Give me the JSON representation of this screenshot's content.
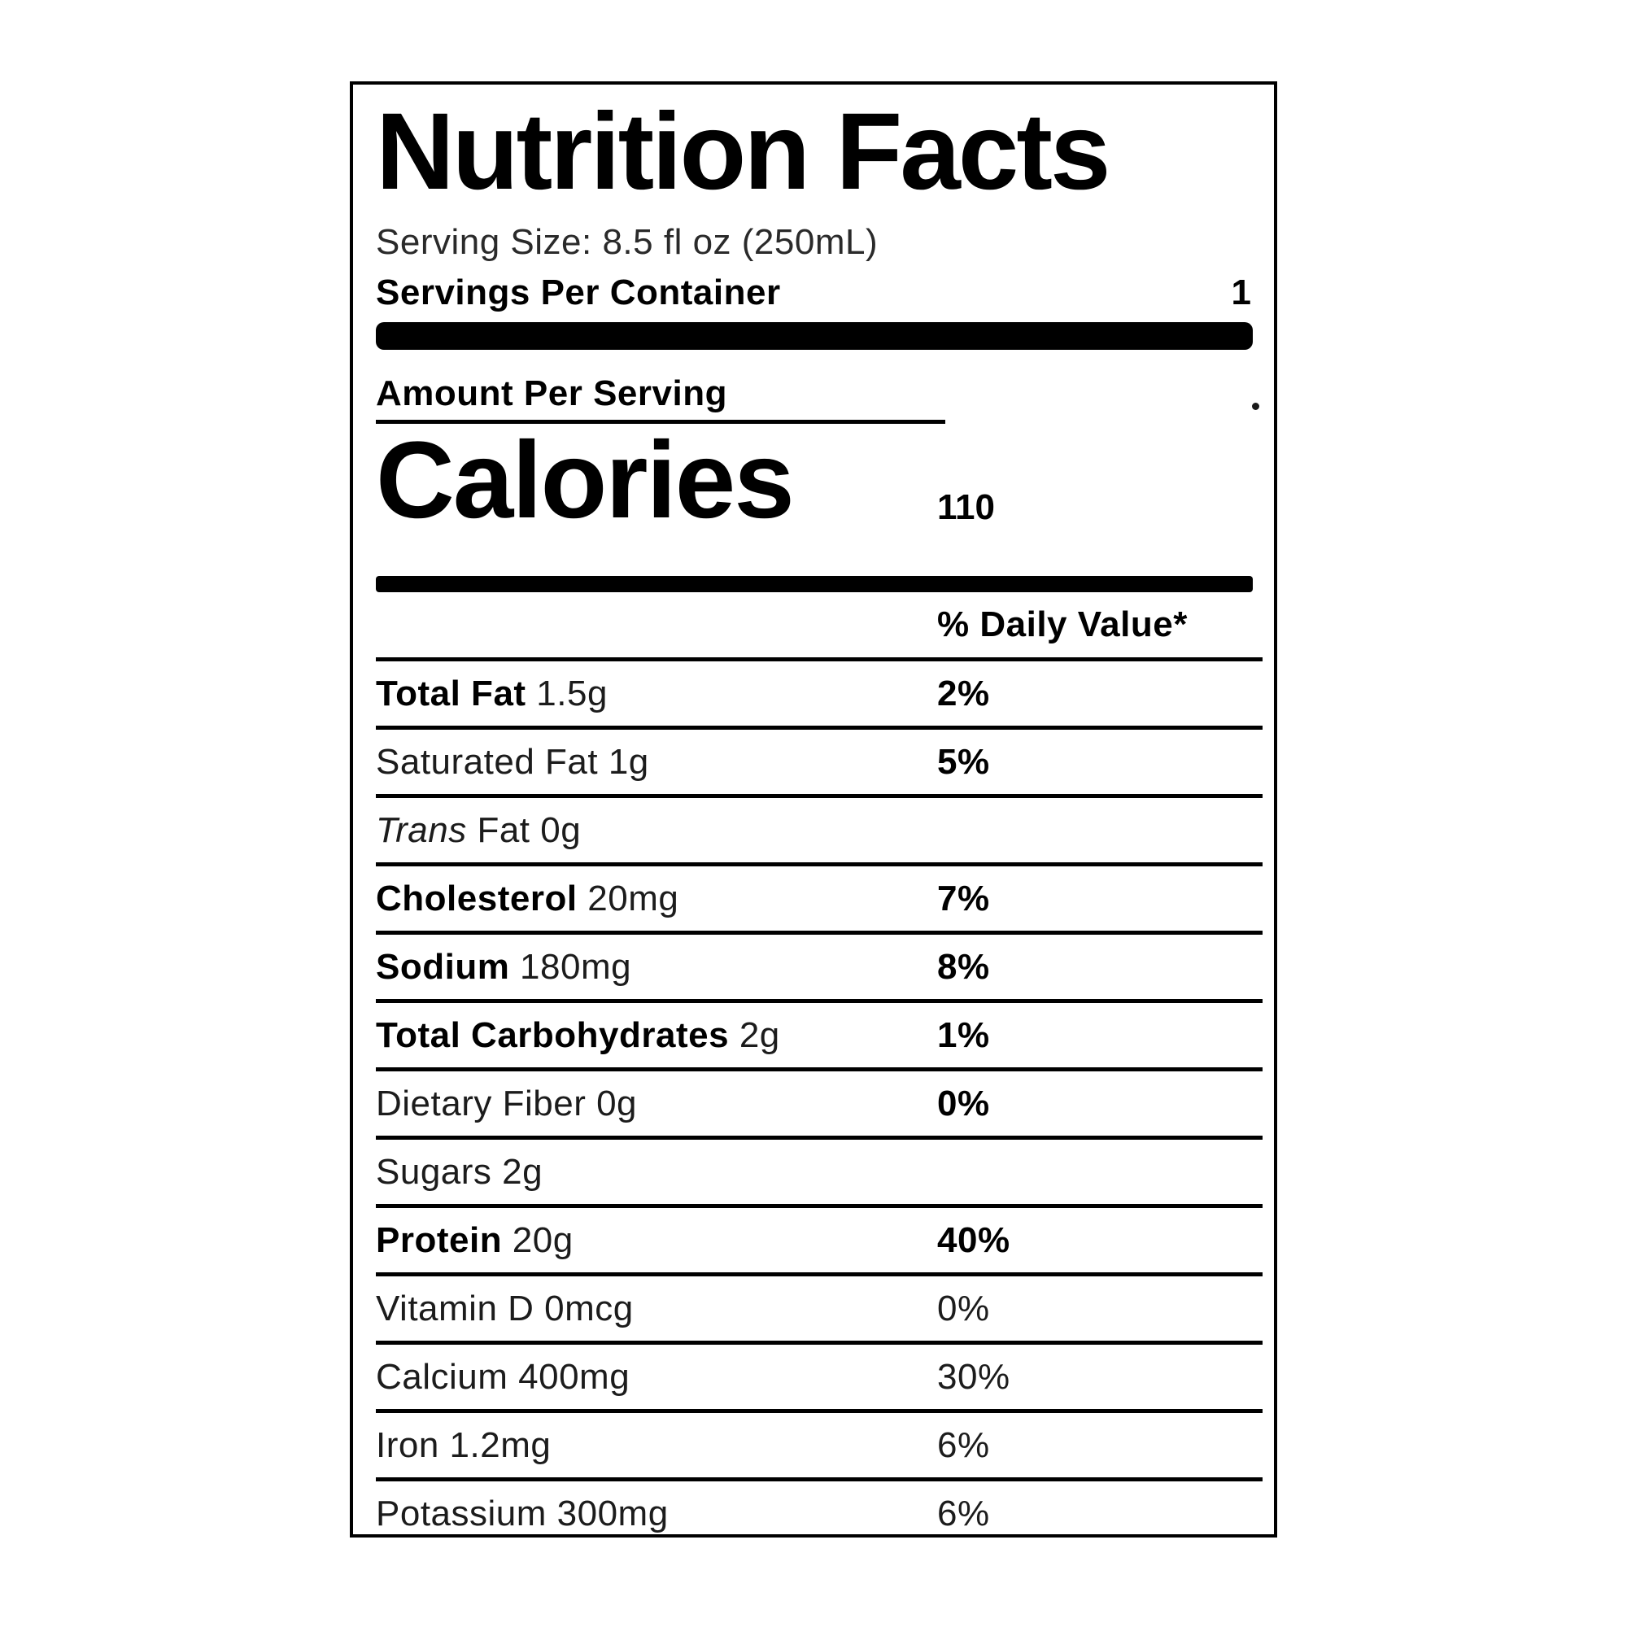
{
  "label": {
    "title": "Nutrition Facts",
    "serving_size": "Serving Size: 8.5 fl oz (250mL)",
    "servings_per_container": {
      "label": "Servings Per Container",
      "value": "1"
    },
    "amount_per_serving": "Amount Per Serving",
    "calories": {
      "label": "Calories",
      "value": "110"
    },
    "daily_value_header": "% Daily Value*"
  },
  "rows": [
    {
      "bold": "Total Fat",
      "normal": " 1.5g",
      "value": "2%"
    },
    {
      "normal": "Saturated Fat 1g",
      "value": "5%"
    },
    {
      "italic": "Trans",
      "normal": " Fat 0g",
      "value": ""
    },
    {
      "bold": "Cholesterol",
      "normal": " 20mg",
      "value": "7%"
    },
    {
      "bold": "Sodium",
      "normal": " 180mg",
      "value": "8%"
    },
    {
      "bold": "Total Carbohydrates",
      "normal": " 2g",
      "value": "1%"
    },
    {
      "normal": "Dietary Fiber 0g",
      "value": "0%"
    },
    {
      "normal": "Sugars 2g",
      "value": ""
    },
    {
      "bold": "Protein",
      "normal": " 20g",
      "value": "40%"
    },
    {
      "normal": "Vitamin D 0mcg",
      "value": "0%"
    },
    {
      "normal": "Calcium 400mg",
      "value": "30%"
    },
    {
      "normal": "Iron 1.2mg",
      "value": "6%"
    },
    {
      "normal": "Potassium 300mg",
      "value": "6%"
    }
  ],
  "colors": {
    "ink": "#000000",
    "background": "#ffffff"
  }
}
